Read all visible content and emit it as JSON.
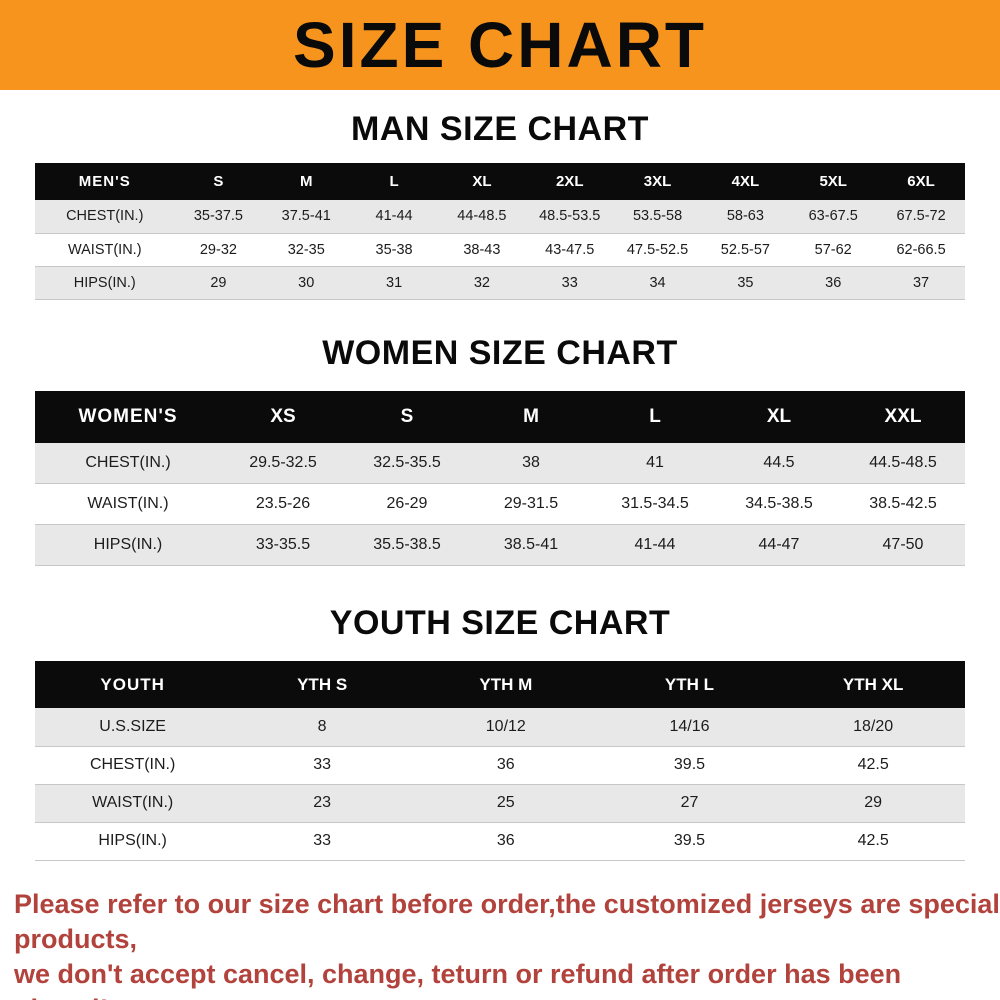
{
  "banner": {
    "title": "SIZE CHART"
  },
  "colors": {
    "banner_bg": "#f7941e",
    "header_bg": "#0b0b0b",
    "row_alt_bg": "#e8e8e8",
    "footer_text": "#b2423c"
  },
  "chart_data": [
    {
      "type": "table",
      "title": "MAN SIZE CHART",
      "corner_label": "MEN'S",
      "columns": [
        "S",
        "M",
        "L",
        "XL",
        "2XL",
        "3XL",
        "4XL",
        "5XL",
        "6XL"
      ],
      "rows": [
        {
          "label": "CHEST(IN.)",
          "values": [
            "35-37.5",
            "37.5-41",
            "41-44",
            "44-48.5",
            "48.5-53.5",
            "53.5-58",
            "58-63",
            "63-67.5",
            "67.5-72"
          ]
        },
        {
          "label": "WAIST(IN.)",
          "values": [
            "29-32",
            "32-35",
            "35-38",
            "38-43",
            "43-47.5",
            "47.5-52.5",
            "52.5-57",
            "57-62",
            "62-66.5"
          ]
        },
        {
          "label": "HIPS(IN.)",
          "values": [
            "29",
            "30",
            "31",
            "32",
            "33",
            "34",
            "35",
            "36",
            "37"
          ]
        }
      ]
    },
    {
      "type": "table",
      "title": "WOMEN SIZE CHART",
      "corner_label": "WOMEN'S",
      "columns": [
        "XS",
        "S",
        "M",
        "L",
        "XL",
        "XXL"
      ],
      "rows": [
        {
          "label": "CHEST(IN.)",
          "values": [
            "29.5-32.5",
            "32.5-35.5",
            "38",
            "41",
            "44.5",
            "44.5-48.5"
          ]
        },
        {
          "label": "WAIST(IN.)",
          "values": [
            "23.5-26",
            "26-29",
            "29-31.5",
            "31.5-34.5",
            "34.5-38.5",
            "38.5-42.5"
          ]
        },
        {
          "label": "HIPS(IN.)",
          "values": [
            "33-35.5",
            "35.5-38.5",
            "38.5-41",
            "41-44",
            "44-47",
            "47-50"
          ]
        }
      ]
    },
    {
      "type": "table",
      "title": "YOUTH SIZE CHART",
      "corner_label": "YOUTH",
      "columns": [
        "YTH S",
        "YTH M",
        "YTH L",
        "YTH XL"
      ],
      "rows": [
        {
          "label": "U.S.SIZE",
          "values": [
            "8",
            "10/12",
            "14/16",
            "18/20"
          ]
        },
        {
          "label": "CHEST(IN.)",
          "values": [
            "33",
            "36",
            "39.5",
            "42.5"
          ]
        },
        {
          "label": "WAIST(IN.)",
          "values": [
            "23",
            "25",
            "27",
            "29"
          ]
        },
        {
          "label": "HIPS(IN.)",
          "values": [
            "33",
            "36",
            "39.5",
            "42.5"
          ]
        }
      ]
    }
  ],
  "footer": {
    "line1": "Please refer to our size chart before order,the customized jerseys are special products,",
    "line2": "we don't accept cancel, change, teturn or refund after order has been placed!"
  }
}
